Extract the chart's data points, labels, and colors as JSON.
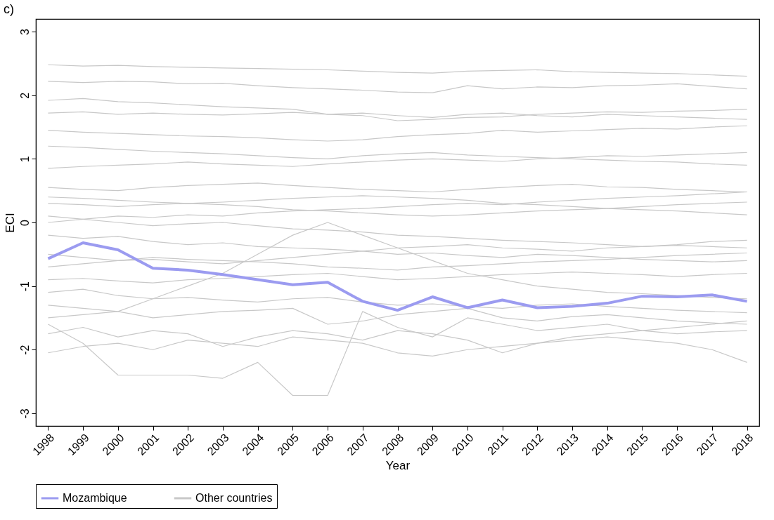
{
  "chart_data": {
    "type": "line",
    "title": "c)",
    "xlabel": "Year",
    "ylabel": "ECI",
    "x": [
      1998,
      1999,
      2000,
      2001,
      2002,
      2003,
      2004,
      2005,
      2006,
      2007,
      2008,
      2009,
      2010,
      2011,
      2012,
      2013,
      2014,
      2015,
      2016,
      2017,
      2018
    ],
    "xlim": [
      1997.65,
      2018.35
    ],
    "xticks": [
      1998,
      1999,
      2000,
      2001,
      2002,
      2003,
      2004,
      2005,
      2006,
      2007,
      2008,
      2009,
      2010,
      2011,
      2012,
      2013,
      2014,
      2015,
      2016,
      2017,
      2018
    ],
    "ylim": [
      -3.2,
      3.2
    ],
    "yticks": [
      -3,
      -2,
      -1,
      0,
      1,
      2,
      3
    ],
    "grid": false,
    "legend": "bottom",
    "line_style": "solid",
    "marker": "none",
    "series": [
      {
        "name": "Mozambique",
        "color": "#9b9bf0",
        "values": [
          -0.57,
          -0.32,
          -0.43,
          -0.72,
          -0.75,
          -0.82,
          -0.9,
          -0.98,
          -0.94,
          -1.24,
          -1.38,
          -1.17,
          -1.34,
          -1.22,
          -1.34,
          -1.32,
          -1.27,
          -1.16,
          -1.17,
          -1.14,
          -1.24
        ]
      },
      {
        "name": "Other countries",
        "color": "#c8c8c8",
        "values": [
          2.48,
          2.46,
          2.47,
          2.45,
          2.44,
          2.43,
          2.42,
          2.41,
          2.4,
          2.38,
          2.36,
          2.35,
          2.38,
          2.39,
          2.4,
          2.37,
          2.36,
          2.35,
          2.34,
          2.32,
          2.3
        ]
      },
      {
        "color": "#c8c8c8",
        "values": [
          2.22,
          2.2,
          2.22,
          2.21,
          2.18,
          2.19,
          2.15,
          2.12,
          2.1,
          2.08,
          2.05,
          2.04,
          2.15,
          2.1,
          2.13,
          2.12,
          2.15,
          2.16,
          2.18,
          2.14,
          2.1
        ]
      },
      {
        "color": "#c8c8c8",
        "values": [
          1.92,
          1.95,
          1.9,
          1.88,
          1.85,
          1.82,
          1.8,
          1.78,
          1.7,
          1.72,
          1.68,
          1.65,
          1.7,
          1.72,
          1.68,
          1.66,
          1.7,
          1.68,
          1.66,
          1.64,
          1.62
        ]
      },
      {
        "color": "#c8c8c8",
        "values": [
          1.72,
          1.74,
          1.7,
          1.72,
          1.7,
          1.69,
          1.71,
          1.73,
          1.7,
          1.68,
          1.6,
          1.62,
          1.65,
          1.66,
          1.7,
          1.72,
          1.74,
          1.73,
          1.75,
          1.76,
          1.78
        ]
      },
      {
        "color": "#c8c8c8",
        "values": [
          1.45,
          1.42,
          1.4,
          1.38,
          1.36,
          1.35,
          1.33,
          1.3,
          1.28,
          1.3,
          1.35,
          1.38,
          1.4,
          1.45,
          1.42,
          1.44,
          1.46,
          1.48,
          1.47,
          1.5,
          1.52
        ]
      },
      {
        "color": "#c8c8c8",
        "values": [
          1.2,
          1.18,
          1.15,
          1.12,
          1.1,
          1.08,
          1.05,
          1.02,
          1.0,
          1.05,
          1.08,
          1.1,
          1.06,
          1.04,
          1.02,
          1.0,
          0.98,
          0.96,
          0.95,
          0.92,
          0.9
        ]
      },
      {
        "color": "#c8c8c8",
        "values": [
          0.85,
          0.88,
          0.9,
          0.92,
          0.95,
          0.92,
          0.9,
          0.88,
          0.92,
          0.95,
          0.98,
          1.0,
          0.98,
          0.96,
          1.0,
          1.02,
          1.05,
          1.04,
          1.06,
          1.08,
          1.1
        ]
      },
      {
        "color": "#c8c8c8",
        "values": [
          0.55,
          0.52,
          0.5,
          0.55,
          0.58,
          0.6,
          0.62,
          0.58,
          0.55,
          0.52,
          0.5,
          0.48,
          0.52,
          0.55,
          0.58,
          0.6,
          0.56,
          0.55,
          0.52,
          0.5,
          0.48
        ]
      },
      {
        "color": "#c8c8c8",
        "values": [
          0.4,
          0.38,
          0.35,
          0.32,
          0.3,
          0.32,
          0.35,
          0.38,
          0.4,
          0.42,
          0.4,
          0.38,
          0.35,
          0.3,
          0.28,
          0.25,
          0.22,
          0.2,
          0.18,
          0.15,
          0.12
        ]
      },
      {
        "color": "#c8c8c8",
        "values": [
          0.3,
          0.28,
          0.25,
          0.28,
          0.3,
          0.28,
          0.25,
          0.2,
          0.18,
          0.15,
          0.12,
          0.1,
          0.12,
          0.15,
          0.18,
          0.2,
          0.22,
          0.25,
          0.28,
          0.3,
          0.32
        ]
      },
      {
        "color": "#c8c8c8",
        "values": [
          0.1,
          0.05,
          0.0,
          -0.05,
          -0.02,
          0.0,
          -0.05,
          -0.1,
          -0.12,
          -0.15,
          -0.2,
          -0.22,
          -0.25,
          -0.28,
          -0.3,
          -0.32,
          -0.35,
          -0.38,
          -0.36,
          -0.38,
          -0.4
        ]
      },
      {
        "color": "#c8c8c8",
        "values": [
          -0.2,
          -0.25,
          -0.22,
          -0.3,
          -0.35,
          -0.32,
          -0.38,
          -0.4,
          -0.42,
          -0.45,
          -0.5,
          -0.48,
          -0.52,
          -0.55,
          -0.5,
          -0.52,
          -0.55,
          -0.58,
          -0.6,
          -0.62,
          -0.6
        ]
      },
      {
        "color": "#c8c8c8",
        "values": [
          -0.5,
          -0.55,
          -0.6,
          -0.58,
          -0.62,
          -0.65,
          -0.6,
          -0.55,
          -0.5,
          -0.45,
          -0.4,
          -0.38,
          -0.35,
          -0.4,
          -0.42,
          -0.45,
          -0.4,
          -0.38,
          -0.35,
          -0.3,
          -0.28
        ]
      },
      {
        "color": "#c8c8c8",
        "values": [
          -0.9,
          -0.88,
          -0.92,
          -0.95,
          -0.9,
          -0.88,
          -0.85,
          -0.82,
          -0.8,
          -0.85,
          -0.9,
          -0.88,
          -0.85,
          -0.82,
          -0.8,
          -0.78,
          -0.8,
          -0.82,
          -0.85,
          -0.82,
          -0.8
        ]
      },
      {
        "color": "#c8c8c8",
        "values": [
          -1.1,
          -1.05,
          -1.15,
          -1.2,
          -1.18,
          -1.22,
          -1.25,
          -1.2,
          -1.18,
          -1.25,
          -1.3,
          -1.28,
          -1.32,
          -1.35,
          -1.3,
          -1.28,
          -1.32,
          -1.35,
          -1.38,
          -1.4,
          -1.42
        ]
      },
      {
        "color": "#c8c8c8",
        "values": [
          -1.5,
          -1.45,
          -1.4,
          -1.2,
          -1.0,
          -0.8,
          -0.5,
          -0.2,
          0.0,
          -0.2,
          -0.4,
          -0.6,
          -0.8,
          -0.9,
          -1.0,
          -1.05,
          -1.1,
          -1.12,
          -1.15,
          -1.18,
          -1.2
        ]
      },
      {
        "color": "#c8c8c8",
        "values": [
          -1.6,
          -1.9,
          -2.4,
          -2.4,
          -2.4,
          -2.45,
          -2.2,
          -2.72,
          -2.72,
          -1.4,
          -1.65,
          -1.8,
          -1.5,
          -1.6,
          -1.7,
          -1.65,
          -1.6,
          -1.7,
          -1.75,
          -1.72,
          -1.7
        ]
      },
      {
        "color": "#c8c8c8",
        "values": [
          -2.05,
          -1.95,
          -1.9,
          -2.0,
          -1.85,
          -1.9,
          -1.95,
          -1.8,
          -1.85,
          -1.9,
          -2.05,
          -2.1,
          -2.0,
          -1.95,
          -1.9,
          -1.85,
          -1.8,
          -1.85,
          -1.9,
          -2.0,
          -2.2
        ]
      },
      {
        "color": "#c8c8c8",
        "values": [
          -1.75,
          -1.65,
          -1.8,
          -1.7,
          -1.75,
          -1.95,
          -1.8,
          -1.7,
          -1.75,
          -1.85,
          -1.7,
          -1.75,
          -1.85,
          -2.05,
          -1.9,
          -1.8,
          -1.75,
          -1.7,
          -1.65,
          -1.6,
          -1.55
        ]
      },
      {
        "color": "#c8c8c8",
        "values": [
          -1.3,
          -1.35,
          -1.4,
          -1.5,
          -1.45,
          -1.4,
          -1.38,
          -1.35,
          -1.6,
          -1.55,
          -1.45,
          -1.4,
          -1.35,
          -1.5,
          -1.55,
          -1.48,
          -1.45,
          -1.5,
          -1.55,
          -1.58,
          -1.6
        ]
      },
      {
        "color": "#c8c8c8",
        "values": [
          0.0,
          0.05,
          0.1,
          0.08,
          0.12,
          0.1,
          0.15,
          0.18,
          0.2,
          0.22,
          0.25,
          0.28,
          0.3,
          0.28,
          0.32,
          0.35,
          0.38,
          0.4,
          0.42,
          0.45,
          0.48
        ]
      },
      {
        "color": "#c8c8c8",
        "values": [
          -0.7,
          -0.65,
          -0.6,
          -0.55,
          -0.58,
          -0.6,
          -0.62,
          -0.65,
          -0.7,
          -0.72,
          -0.75,
          -0.7,
          -0.68,
          -0.65,
          -0.62,
          -0.6,
          -0.58,
          -0.55,
          -0.52,
          -0.5,
          -0.48
        ]
      }
    ]
  }
}
